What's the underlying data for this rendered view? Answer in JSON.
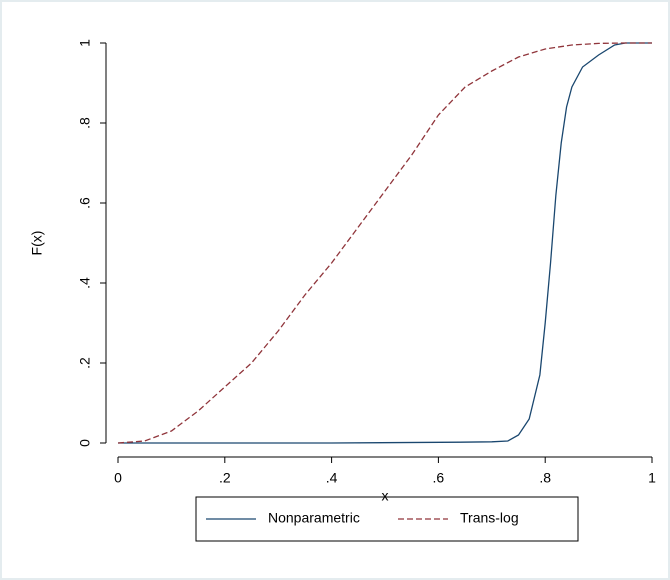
{
  "chart_data": {
    "type": "line",
    "x_label": "x",
    "y_label": "F(x)",
    "xlim": [
      0,
      1
    ],
    "ylim": [
      0,
      1
    ],
    "xticks": [
      0,
      {
        "value": 0.2,
        "label": ".2"
      },
      {
        "value": 0.4,
        "label": ".4"
      },
      {
        "value": 0.6,
        "label": ".6"
      },
      {
        "value": 0.8,
        "label": ".8"
      },
      1
    ],
    "yticks": [
      0,
      {
        "value": 0.2,
        "label": ".2"
      },
      {
        "value": 0.4,
        "label": ".4"
      },
      {
        "value": 0.6,
        "label": ".6"
      },
      {
        "value": 0.8,
        "label": ".8"
      },
      1
    ],
    "series": [
      {
        "name": "Nonparametric",
        "color": "#1a476f",
        "style": "solid",
        "x": [
          0,
          0.2,
          0.4,
          0.64,
          0.7,
          0.73,
          0.75,
          0.77,
          0.79,
          0.8,
          0.81,
          0.82,
          0.83,
          0.84,
          0.85,
          0.87,
          0.9,
          0.93,
          0.95,
          1
        ],
        "values": [
          0,
          0,
          0,
          0.002,
          0.003,
          0.005,
          0.02,
          0.06,
          0.17,
          0.3,
          0.45,
          0.62,
          0.75,
          0.84,
          0.89,
          0.94,
          0.97,
          0.995,
          1,
          1
        ]
      },
      {
        "name": "Trans-log",
        "color": "#90353b",
        "style": "dashed",
        "x": [
          0,
          0.05,
          0.1,
          0.15,
          0.2,
          0.25,
          0.3,
          0.35,
          0.4,
          0.45,
          0.5,
          0.55,
          0.6,
          0.65,
          0.7,
          0.75,
          0.8,
          0.85,
          0.9,
          0.95,
          1
        ],
        "values": [
          0,
          0.005,
          0.03,
          0.08,
          0.14,
          0.2,
          0.28,
          0.37,
          0.45,
          0.54,
          0.63,
          0.72,
          0.82,
          0.89,
          0.93,
          0.965,
          0.985,
          0.995,
          0.999,
          1,
          1
        ]
      }
    ]
  }
}
